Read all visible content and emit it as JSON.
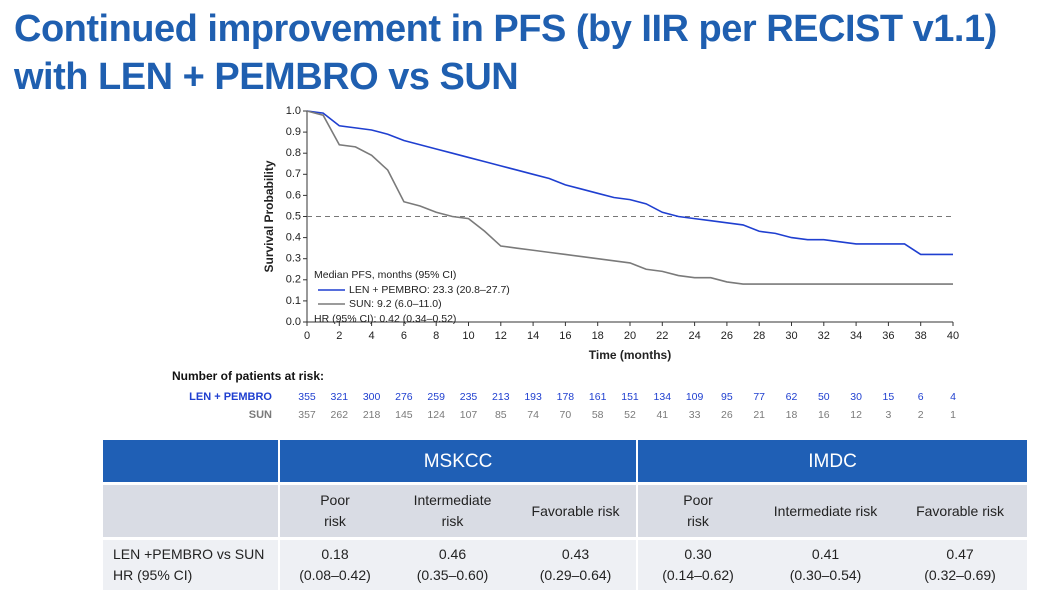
{
  "title": [
    "Continued improvement in PFS (by IIR per RECIST v1.1)",
    "with LEN + PEMBRO vs SUN"
  ],
  "chart_data": {
    "type": "line",
    "x": [
      0,
      1,
      2,
      3,
      4,
      5,
      6,
      7,
      8,
      9,
      10,
      11,
      12,
      13,
      14,
      15,
      16,
      17,
      18,
      19,
      20,
      21,
      22,
      23,
      24,
      25,
      26,
      27,
      28,
      29,
      30,
      31,
      32,
      33,
      34,
      35,
      36,
      37,
      38,
      39,
      40
    ],
    "series": [
      {
        "name": "LEN + PEMBRO: 23.3 (20.8–27.7)",
        "color": "#1f3fd0",
        "values": [
          1.0,
          0.99,
          0.93,
          0.92,
          0.91,
          0.89,
          0.86,
          0.84,
          0.82,
          0.8,
          0.78,
          0.76,
          0.74,
          0.72,
          0.7,
          0.68,
          0.65,
          0.63,
          0.61,
          0.59,
          0.58,
          0.56,
          0.52,
          0.5,
          0.49,
          0.48,
          0.47,
          0.46,
          0.43,
          0.42,
          0.4,
          0.39,
          0.39,
          0.38,
          0.37,
          0.37,
          0.37,
          0.37,
          0.32,
          0.32,
          0.32
        ]
      },
      {
        "name": "SUN: 9.2 (6.0–11.0)",
        "color": "#7a7a7a",
        "values": [
          1.0,
          0.98,
          0.84,
          0.83,
          0.79,
          0.72,
          0.57,
          0.55,
          0.52,
          0.5,
          0.49,
          0.43,
          0.36,
          0.35,
          0.34,
          0.33,
          0.32,
          0.31,
          0.3,
          0.29,
          0.28,
          0.25,
          0.24,
          0.22,
          0.21,
          0.21,
          0.19,
          0.18,
          0.18,
          0.18,
          0.18,
          0.18,
          0.18,
          0.18,
          0.18,
          0.18,
          0.18,
          0.18,
          0.18,
          0.18,
          0.18
        ]
      }
    ],
    "legend_title": "Median PFS, months (95% CI)",
    "legend_note": "HR (95% CI): 0.42 (0.34–0.52)",
    "xlabel": "Time (months)",
    "ylabel": "Survival Probability",
    "xlim": [
      0,
      40
    ],
    "ylim": [
      0,
      1
    ],
    "xticks": [
      0,
      2,
      4,
      6,
      8,
      10,
      12,
      14,
      16,
      18,
      20,
      22,
      24,
      26,
      28,
      30,
      32,
      34,
      36,
      38,
      40
    ],
    "yticks": [
      {
        "value": 0,
        "label": "0.0"
      },
      0.1,
      0.2,
      0.3,
      0.4,
      0.5,
      0.6,
      0.7,
      0.8,
      0.9,
      {
        "value": 1,
        "label": "1.0"
      }
    ],
    "reference_line": 0.5,
    "at_risk": {
      "title": "Number of patients at risk:",
      "rows": [
        {
          "name": "LEN + PEMBRO",
          "color": "#1f3fd0",
          "values": [
            355,
            321,
            300,
            276,
            259,
            235,
            213,
            193,
            178,
            161,
            151,
            134,
            109,
            95,
            77,
            62,
            50,
            30,
            15,
            6,
            4
          ]
        },
        {
          "name": "SUN",
          "color": "#7a7a7a",
          "values": [
            357,
            262,
            218,
            145,
            124,
            107,
            85,
            74,
            70,
            58,
            52,
            41,
            33,
            26,
            21,
            18,
            16,
            12,
            3,
            2,
            1
          ]
        }
      ]
    }
  },
  "table": {
    "groups": [
      "MSKCC",
      "IMDC"
    ],
    "subheaders": [
      "Poor\nrisk",
      "Intermediate\nrisk",
      "Favorable risk",
      "Poor\nrisk",
      "Intermediate risk",
      "Favorable risk"
    ],
    "row_label": "LEN +PEMBRO vs SUN\nHR (95% CI)",
    "cells": [
      "0.18\n(0.08–0.42)",
      "0.46\n(0.35–0.60)",
      "0.43\n(0.29–0.64)",
      "0.30\n(0.14–0.62)",
      "0.41\n(0.30–0.54)",
      "0.47\n(0.32–0.69)"
    ]
  }
}
